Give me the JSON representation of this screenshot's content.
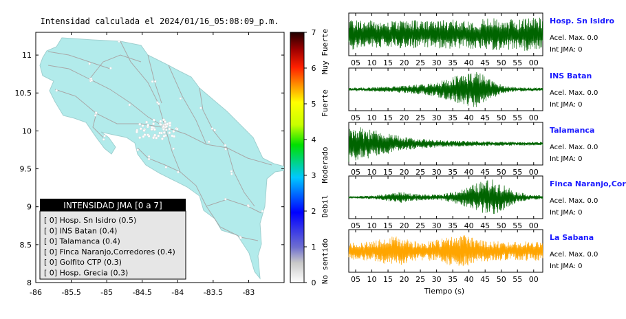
{
  "map": {
    "title": "Intensidad calculada el 2024/01/16_05:08:09_p.m.",
    "x_ticks": [
      "-86",
      "-85.5",
      "-85",
      "-84.5",
      "-84",
      "-83.5",
      "-83"
    ],
    "y_ticks": [
      "11",
      "10.5",
      "10",
      "9.5",
      "9",
      "8.5",
      "8"
    ],
    "xlim": [
      -86,
      -82.5
    ],
    "ylim": [
      8,
      11.3
    ],
    "land_color": "#b2ebeb",
    "station_color": "#ffffff",
    "legend": {
      "title": "INTENSIDAD JMA [0 a 7]",
      "items": [
        "[ 0]  Hosp. Sn Isidro (0.5)",
        "[ 0]  INS Batan (0.4)",
        "[ 0]  Talamanca (0.4)",
        "[ 0]  Finca Naranjo,Corredores (0.4)",
        "[ 0]  Golfito CTP (0.3)",
        "[ 0]  Hosp. Grecia (0.3)"
      ]
    }
  },
  "colorbar": {
    "ticks": [
      "7",
      "6",
      "5",
      "4",
      "3",
      "2",
      "1",
      "0"
    ],
    "labels": [
      "Muy Fuerte",
      "Fuerte",
      "Moderado",
      "Debil",
      "No sentido"
    ]
  },
  "chart_data": {
    "type": "line",
    "xlabel": "Tiempo (s)",
    "x_ticks": [
      "05",
      "10",
      "15",
      "20",
      "25",
      "30",
      "35",
      "40",
      "45",
      "50",
      "55",
      "00"
    ],
    "series": [
      {
        "name": "Hosp. Sn Isidro",
        "color": "#006400",
        "pga": "Acel. Max. 0.0",
        "jma": "Int JMA: 0",
        "envelope": [
          0.85,
          0.8,
          0.75,
          0.7,
          0.75,
          0.8,
          0.7,
          0.75,
          0.8,
          0.75,
          0.8,
          0.9,
          0.85,
          0.8,
          0.95,
          1.0
        ]
      },
      {
        "name": "INS Batan",
        "color": "#006400",
        "pga": "Acel. Max. 0.0",
        "jma": "Int JMA: 0",
        "envelope": [
          0.08,
          0.1,
          0.12,
          0.15,
          0.18,
          0.25,
          0.3,
          0.45,
          0.7,
          0.9,
          1.0,
          0.5,
          0.2,
          0.12,
          0.1,
          0.08
        ]
      },
      {
        "name": "Talamanca",
        "color": "#006400",
        "pga": "Acel. Max. 0.0",
        "jma": "Int JMA: 0",
        "envelope": [
          1.0,
          0.9,
          0.75,
          0.55,
          0.4,
          0.3,
          0.25,
          0.2,
          0.18,
          0.15,
          0.14,
          0.12,
          0.12,
          0.1,
          0.1,
          0.1
        ]
      },
      {
        "name": "Finca Naranjo,Corredores",
        "color": "#006400",
        "pga": "Acel. Max. 0.0",
        "jma": "Int JMA: 0",
        "envelope": [
          0.05,
          0.08,
          0.1,
          0.2,
          0.3,
          0.2,
          0.15,
          0.15,
          0.3,
          0.5,
          0.8,
          1.0,
          0.7,
          0.3,
          0.15,
          0.1
        ]
      },
      {
        "name": "La Sabana",
        "color": "#ffa500",
        "pga": "Acel. Max. 0.0",
        "jma": "Int JMA: 0",
        "envelope": [
          0.45,
          0.5,
          0.55,
          0.75,
          0.8,
          0.55,
          0.5,
          0.65,
          0.85,
          0.9,
          0.6,
          0.55,
          0.5,
          0.5,
          0.55,
          0.5
        ]
      }
    ]
  }
}
